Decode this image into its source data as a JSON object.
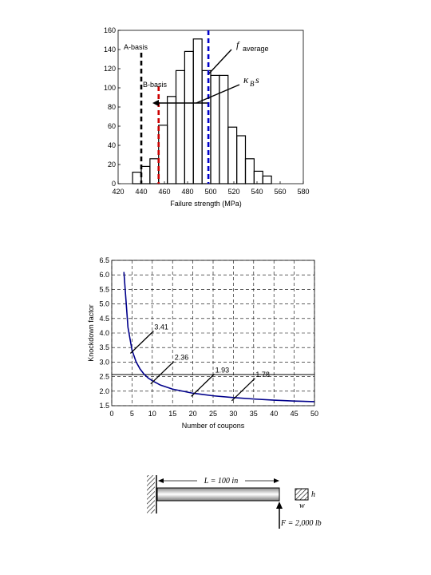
{
  "chart_data": [
    {
      "type": "bar",
      "xlabel": "Failure strength (MPa)",
      "ylabel": "",
      "xlim": [
        420,
        580
      ],
      "ylim": [
        0,
        160
      ],
      "xticks": [
        "420",
        "440",
        "460",
        "480",
        "500",
        "520",
        "540",
        "560",
        "580"
      ],
      "yticks": [
        "0",
        "20",
        "40",
        "60",
        "80",
        "100",
        "120",
        "140",
        "160"
      ],
      "bin_width": 7.5,
      "bins": [
        {
          "left": 432.5,
          "count": 12
        },
        {
          "left": 440.0,
          "count": 18
        },
        {
          "left": 447.5,
          "count": 26
        },
        {
          "left": 455.0,
          "count": 61
        },
        {
          "left": 462.5,
          "count": 91
        },
        {
          "left": 470.0,
          "count": 118
        },
        {
          "left": 477.5,
          "count": 138
        },
        {
          "left": 485.0,
          "count": 151
        },
        {
          "left": 492.5,
          "count": 118
        },
        {
          "left": 500.0,
          "count": 113
        },
        {
          "left": 507.5,
          "count": 113
        },
        {
          "left": 515.0,
          "count": 59
        },
        {
          "left": 522.5,
          "count": 50
        },
        {
          "left": 530.0,
          "count": 26
        },
        {
          "left": 537.5,
          "count": 13
        },
        {
          "left": 545.0,
          "count": 8
        }
      ],
      "reference_lines": [
        {
          "label": "A-basis",
          "x": 440,
          "color": "#000000"
        },
        {
          "label": "B-basis",
          "x": 455,
          "color": "#cc0000"
        },
        {
          "label": "average",
          "x": 498,
          "color": "#0000cc"
        }
      ],
      "annotations": {
        "a_basis": "A-basis",
        "b_basis": "B-basis",
        "average_symbol": "f",
        "average_sub": "average",
        "kb_symbol": "κ",
        "kb_sub": "B",
        "kb_rest": " s"
      }
    },
    {
      "type": "line",
      "xlabel": "Number of coupons",
      "ylabel": "Knockdown factor",
      "xlim": [
        0,
        50
      ],
      "ylim": [
        1.5,
        6.5
      ],
      "xticks": [
        "0",
        "5",
        "10",
        "15",
        "20",
        "25",
        "30",
        "35",
        "40",
        "45",
        "50"
      ],
      "yticks": [
        "1.5",
        "2.0",
        "2.5",
        "3.0",
        "3.5",
        "4.0",
        "4.5",
        "5.0",
        "5.5",
        "6.0",
        "6.5"
      ],
      "grid": true,
      "series": [
        {
          "color": "#00008b",
          "x": [
            3,
            4,
            5,
            6,
            7,
            8,
            9,
            10,
            12,
            15,
            20,
            25,
            30,
            35,
            40,
            45,
            50
          ],
          "y": [
            6.1,
            4.2,
            3.41,
            3.01,
            2.76,
            2.58,
            2.45,
            2.36,
            2.21,
            2.07,
            1.93,
            1.84,
            1.78,
            1.73,
            1.69,
            1.66,
            1.64
          ]
        }
      ],
      "horizontal_line": {
        "y": 2.57
      },
      "point_labels": [
        {
          "x": 5,
          "y": 3.41,
          "text": "3.41"
        },
        {
          "x": 10,
          "y": 2.36,
          "text": "2.36"
        },
        {
          "x": 20,
          "y": 1.93,
          "text": "1.93"
        },
        {
          "x": 30,
          "y": 1.78,
          "text": "1.78"
        }
      ]
    }
  ],
  "beam": {
    "length_label": "L = 100 in",
    "height_label": "h",
    "width_label": "w",
    "force_label": "F = 2,000 lb"
  }
}
